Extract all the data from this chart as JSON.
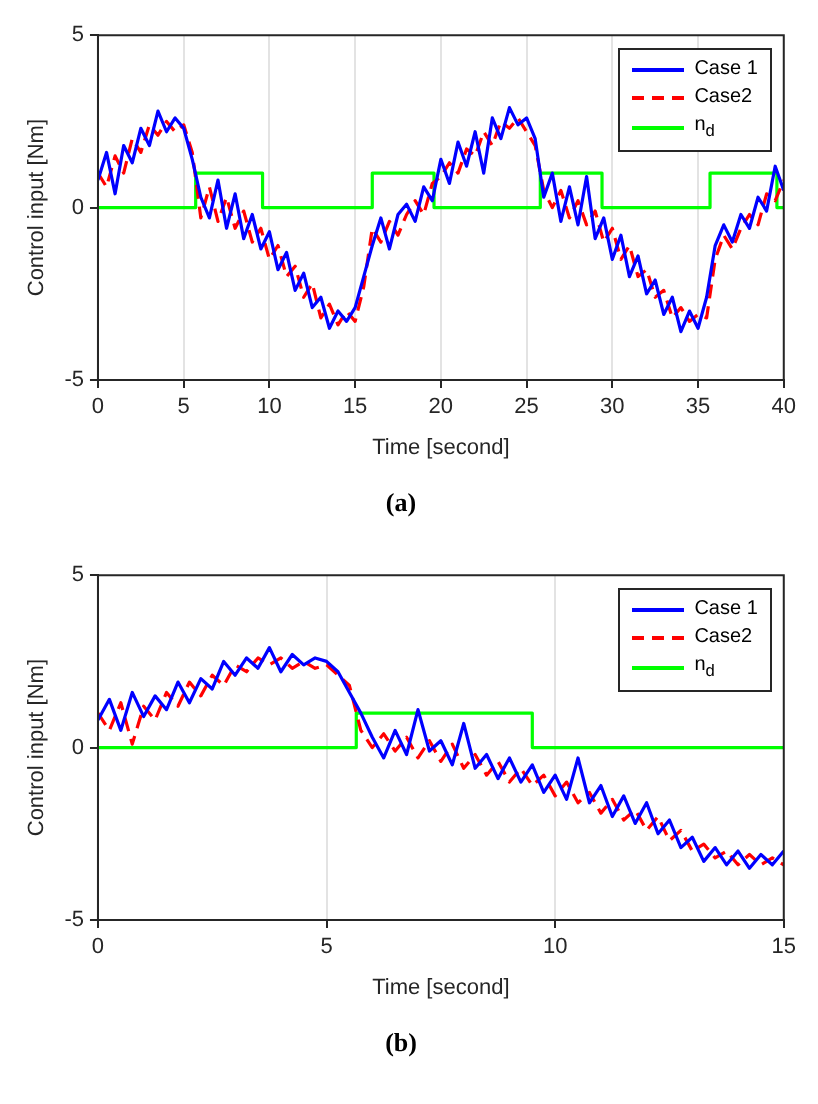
{
  "chart_data": [
    {
      "type": "line",
      "title": "(a)",
      "xlabel": "Time [second]",
      "ylabel": "Control input [Nm]",
      "xlim": [
        0,
        40
      ],
      "xticks": [
        0,
        5,
        10,
        15,
        20,
        25,
        30,
        35,
        40
      ],
      "ylim": [
        -5,
        5
      ],
      "yticks": [
        -5,
        0,
        5
      ],
      "grid": "x",
      "legend": "top right",
      "marker": "none",
      "x": [
        0,
        0.5,
        1,
        1.5,
        2,
        2.5,
        3,
        3.5,
        4,
        4.5,
        5,
        5.5,
        6,
        6.5,
        7,
        7.5,
        8,
        8.5,
        9,
        9.5,
        10,
        10.5,
        11,
        11.5,
        12,
        12.5,
        13,
        13.5,
        14,
        14.5,
        15,
        15.5,
        16,
        16.5,
        17,
        17.5,
        18,
        18.5,
        19,
        19.5,
        20,
        20.5,
        21,
        21.5,
        22,
        22.5,
        23,
        23.5,
        24,
        24.5,
        25,
        25.5,
        26,
        26.5,
        27,
        27.5,
        28,
        28.5,
        29,
        29.5,
        30,
        30.5,
        31,
        31.5,
        32,
        32.5,
        33,
        33.5,
        34,
        34.5,
        35,
        35.5,
        36,
        36.5,
        37,
        37.5,
        38,
        38.5,
        39,
        39.5,
        40
      ],
      "series": [
        {
          "name": "Case 1",
          "color": "#0000ff",
          "line_style": "solid",
          "values": [
            0.8,
            1.6,
            0.4,
            1.8,
            1.3,
            2.3,
            1.8,
            2.8,
            2.2,
            2.6,
            2.3,
            1.4,
            0.3,
            -0.3,
            0.8,
            -0.6,
            0.4,
            -0.9,
            -0.2,
            -1.2,
            -0.7,
            -1.8,
            -1.3,
            -2.4,
            -1.9,
            -2.9,
            -2.6,
            -3.5,
            -3.0,
            -3.3,
            -2.9,
            -2.0,
            -1.1,
            -0.3,
            -1.2,
            -0.2,
            0.1,
            -0.4,
            0.6,
            0.2,
            1.4,
            0.7,
            1.9,
            1.2,
            2.2,
            1.0,
            2.6,
            2.0,
            2.9,
            2.4,
            2.6,
            2.0,
            0.3,
            1.0,
            -0.4,
            0.6,
            -0.5,
            0.9,
            -0.9,
            -0.3,
            -1.5,
            -0.8,
            -2.0,
            -1.4,
            -2.5,
            -2.1,
            -3.1,
            -2.6,
            -3.6,
            -3.0,
            -3.5,
            -2.6,
            -1.1,
            -0.5,
            -1.0,
            -0.2,
            -0.6,
            0.3,
            -0.1,
            1.2,
            0.5
          ]
        },
        {
          "name": "Case2",
          "color": "#ff0000",
          "line_style": "dashed",
          "values": [
            1.0,
            0.6,
            1.5,
            1.0,
            2.0,
            1.6,
            2.4,
            2.1,
            2.5,
            2.2,
            2.4,
            1.6,
            -0.3,
            0.6,
            -0.4,
            0.3,
            -0.6,
            -0.1,
            -1.0,
            -0.6,
            -1.5,
            -1.1,
            -2.0,
            -1.7,
            -2.6,
            -2.2,
            -3.2,
            -2.8,
            -3.4,
            -3.0,
            -3.3,
            -2.3,
            -0.6,
            -1.0,
            -0.4,
            -0.8,
            -0.2,
            0.2,
            -0.2,
            0.7,
            0.9,
            1.3,
            1.0,
            1.7,
            1.5,
            2.2,
            1.8,
            2.5,
            2.3,
            2.6,
            2.2,
            1.8,
            0.5,
            0,
            0.5,
            -0.3,
            0.2,
            -0.5,
            -0.1,
            -1.0,
            -0.6,
            -1.5,
            -1.1,
            -2.0,
            -1.8,
            -2.6,
            -2.4,
            -3.2,
            -2.9,
            -3.3,
            -3.1,
            -3.2,
            -1.5,
            -0.8,
            -1.2,
            -0.6,
            -0.2,
            -0.5,
            0.4,
            0.2,
            0.8
          ]
        },
        {
          "name": "n$_{d}$",
          "type": "step",
          "color": "#00ff00",
          "line_style": "solid",
          "x": [
            0,
            5.7,
            9.6,
            16,
            19.6,
            25.8,
            29.4,
            35.7,
            39.6,
            40
          ],
          "values": [
            0,
            1,
            0,
            1,
            0,
            1,
            0,
            1,
            0,
            0
          ]
        }
      ]
    },
    {
      "type": "line",
      "title": "(b)",
      "xlabel": "Time [second]",
      "ylabel": "Control input [Nm]",
      "xlim": [
        0,
        15
      ],
      "xticks": [
        0,
        5,
        10,
        15
      ],
      "ylim": [
        -5,
        5
      ],
      "yticks": [
        -5,
        0,
        5
      ],
      "grid": "x",
      "legend": "top right",
      "marker": "none",
      "x": [
        0,
        0.25,
        0.5,
        0.75,
        1,
        1.25,
        1.5,
        1.75,
        2,
        2.25,
        2.5,
        2.75,
        3,
        3.25,
        3.5,
        3.75,
        4,
        4.25,
        4.5,
        4.75,
        5,
        5.25,
        5.5,
        5.75,
        6,
        6.25,
        6.5,
        6.75,
        7,
        7.25,
        7.5,
        7.75,
        8,
        8.25,
        8.5,
        8.75,
        9,
        9.25,
        9.5,
        9.75,
        10,
        10.25,
        10.5,
        10.75,
        11,
        11.25,
        11.5,
        11.75,
        12,
        12.25,
        12.5,
        12.75,
        13,
        13.25,
        13.5,
        13.75,
        14,
        14.25,
        14.5,
        14.75,
        15
      ],
      "series": [
        {
          "name": "Case 1",
          "color": "#0000ff",
          "line_style": "solid",
          "values": [
            0.8,
            1.4,
            0.5,
            1.6,
            0.9,
            1.5,
            1.1,
            1.9,
            1.3,
            2.0,
            1.7,
            2.5,
            2.1,
            2.6,
            2.3,
            2.9,
            2.2,
            2.7,
            2.4,
            2.6,
            2.5,
            2.2,
            1.6,
            1.0,
            0.3,
            -0.3,
            0.5,
            -0.2,
            1.1,
            -0.1,
            0.2,
            -0.5,
            0.7,
            -0.6,
            -0.2,
            -0.9,
            -0.3,
            -1.0,
            -0.5,
            -1.3,
            -0.8,
            -1.5,
            -0.3,
            -1.6,
            -1.1,
            -2.0,
            -1.4,
            -2.2,
            -1.6,
            -2.5,
            -2.1,
            -2.9,
            -2.6,
            -3.3,
            -2.9,
            -3.4,
            -3.0,
            -3.5,
            -3.1,
            -3.4,
            -3.0
          ]
        },
        {
          "name": "Case2",
          "color": "#ff0000",
          "line_style": "dashed",
          "values": [
            1.0,
            0.5,
            1.3,
            0.1,
            1.2,
            0.8,
            1.6,
            1.2,
            1.9,
            1.5,
            2.1,
            1.8,
            2.4,
            2.2,
            2.6,
            2.4,
            2.6,
            2.3,
            2.5,
            2.3,
            2.4,
            2.1,
            1.8,
            0.5,
            0.0,
            0.4,
            -0.1,
            0.3,
            -0.3,
            0.2,
            -0.4,
            0.1,
            -0.6,
            -0.2,
            -0.8,
            -0.4,
            -1.0,
            -0.6,
            -1.1,
            -0.8,
            -1.4,
            -1.0,
            -1.6,
            -1.3,
            -1.9,
            -1.5,
            -2.1,
            -1.8,
            -2.4,
            -2.0,
            -2.7,
            -2.4,
            -3.0,
            -2.8,
            -3.2,
            -3.0,
            -3.4,
            -3.1,
            -3.4,
            -3.2,
            -3.4
          ]
        },
        {
          "name": "n$_{d}$",
          "type": "step",
          "color": "#00ff00",
          "line_style": "solid",
          "x": [
            0,
            5.65,
            9.5,
            15
          ],
          "values": [
            0,
            1,
            0,
            0
          ]
        }
      ]
    }
  ]
}
